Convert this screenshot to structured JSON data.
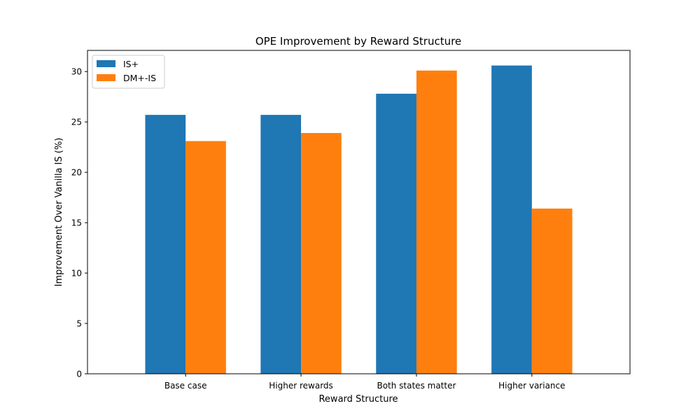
{
  "chart_data": {
    "type": "bar",
    "title": "OPE Improvement by Reward Structure",
    "xlabel": "Reward Structure",
    "ylabel": "Improvement Over Vanilla IS (%)",
    "categories": [
      "Base case",
      "Higher rewards",
      "Both states matter",
      "Higher variance"
    ],
    "series": [
      {
        "name": "IS+",
        "color": "#1f77b4",
        "values": [
          25.7,
          25.7,
          27.8,
          30.6
        ]
      },
      {
        "name": "DM+-IS",
        "color": "#ff7f0e",
        "values": [
          23.1,
          23.9,
          30.1,
          16.4
        ]
      }
    ],
    "ylim": [
      0,
      32.1
    ],
    "yticks": [
      0,
      5,
      10,
      15,
      20,
      25,
      30
    ],
    "grid": false,
    "legend_position": "top-left"
  }
}
